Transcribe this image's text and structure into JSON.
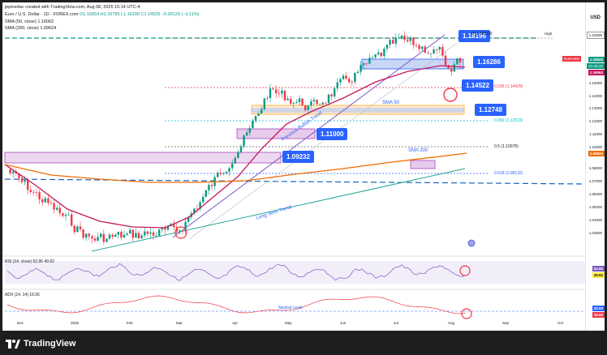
{
  "header": {
    "creator": "jepinedac created with TradingView.com, Aug 08, 2025 15:14 UTC-4",
    "symbol_line": "Euro / U.S. Dollar · 1D · FOREX.com",
    "ohlc": "O1.16654  H1.16795  L1.16290  C1.16525  −0.00129 (−0.11%)",
    "sma50": "SMA (50, close)  1.16062",
    "sma200": "SMA (200, close)  1.09624",
    "currency": "USD"
  },
  "colors": {
    "bull": "#089981",
    "bear": "#f23645",
    "sma50": "#c2185b",
    "sma200": "#ef6c00",
    "accent": "#2962ff",
    "trend": "#26a69a",
    "zone": "#b2c5f0",
    "pinkzone": "#e1bee7"
  },
  "price_tags": {
    "t1": "1.18196",
    "t2": "1.16286",
    "t3": "1.14522",
    "t4": "1.12748",
    "t5": "1.11000",
    "t6": "1.09232"
  },
  "annotations": {
    "sma50": "SMA 50",
    "sma200": "SMA 200",
    "prev_bullish": "Previous Bullish Trend",
    "long_term": "Long Term Trend",
    "neutral_level": "Neutral Level"
  },
  "fib": {
    "f0": "0 (1.18319)",
    "f236": "0.236 (1.14429)",
    "f382": "0.382 (1.12023)",
    "f5": "0.5 (1.10078)",
    "f618": "0.618 (1.08132)"
  },
  "yaxis": {
    "ticks": [
      "1.17000",
      "1.15000",
      "1.14000",
      "1.13000",
      "1.12000",
      "1.11000",
      "1.10000",
      "1.08000",
      "1.07000",
      "1.06000",
      "1.05000",
      "1.04000",
      "1.03000"
    ],
    "high_label": "High",
    "high_value": "1.18299",
    "last_symbol": "EURUSD",
    "last_value": "1.16525",
    "countdown": "01:45:32",
    "sma50_value": "1.16062",
    "sma200_value": "1.09624"
  },
  "xaxis": [
    "Dec",
    "2025",
    "Feb",
    "Mar",
    "Apr",
    "May",
    "Jun",
    "Jul",
    "Aug",
    "Sep",
    "Oct"
  ],
  "rsi": {
    "label": "RSI (14, close)  52.95  49.92",
    "v1": "52.95",
    "v2": "49.92"
  },
  "adx": {
    "label": "ADX (14, 14)  16.56",
    "v1": "20.00",
    "v2": "16.56"
  },
  "footer": {
    "brand": "TradingView"
  }
}
